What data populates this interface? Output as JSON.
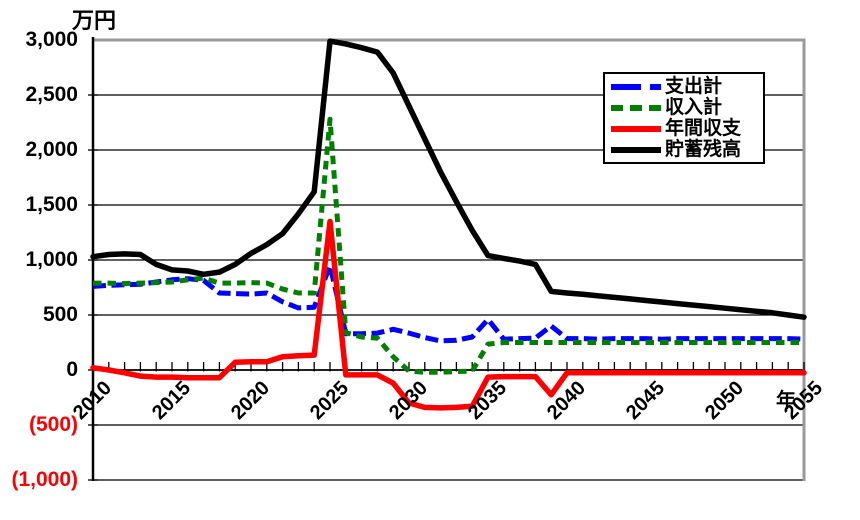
{
  "unit_label": "万円",
  "x_axis_suffix": "年",
  "colors": {
    "expenditure": "#0000ff",
    "income": "#008000",
    "annual_balance": "#ff0000",
    "savings_balance": "#000000",
    "negative_tick": "#ff0000",
    "frame_gray": "#9a9a9a",
    "grid_black": "#000000"
  },
  "chart_data": {
    "type": "line",
    "title": "",
    "ylabel": "万円",
    "xlabel": "年",
    "ylim": [
      -1000,
      3000
    ],
    "grid": true,
    "legend_position": "top-right-inside",
    "x": [
      2010,
      2011,
      2012,
      2013,
      2014,
      2015,
      2016,
      2017,
      2018,
      2019,
      2020,
      2021,
      2022,
      2023,
      2024,
      2025,
      2026,
      2027,
      2028,
      2029,
      2030,
      2031,
      2032,
      2033,
      2034,
      2035,
      2036,
      2037,
      2038,
      2039,
      2040,
      2041,
      2042,
      2043,
      2044,
      2045,
      2046,
      2047,
      2048,
      2049,
      2050,
      2051,
      2052,
      2053,
      2054,
      2055
    ],
    "x_tick_labels": [
      "2010",
      "2015",
      "2020",
      "2025",
      "2030",
      "2035",
      "2040",
      "2045",
      "2050",
      "2055"
    ],
    "y_ticks": [
      {
        "label": "3,000",
        "value": 3000,
        "negative": false
      },
      {
        "label": "2,500",
        "value": 2500,
        "negative": false
      },
      {
        "label": "2,000",
        "value": 2000,
        "negative": false
      },
      {
        "label": "1,500",
        "value": 1500,
        "negative": false
      },
      {
        "label": "1,000",
        "value": 1000,
        "negative": false
      },
      {
        "label": "500",
        "value": 500,
        "negative": false
      },
      {
        "label": "0",
        "value": 0,
        "negative": false
      },
      {
        "label": "(500)",
        "value": -500,
        "negative": true
      },
      {
        "label": "(1,000)",
        "value": -1000,
        "negative": true
      }
    ],
    "series": [
      {
        "key": "expenditure-total",
        "name": "支出計",
        "color": "#0000ff",
        "dash": "13 5.5",
        "legend_dash": "30 9",
        "width": 5,
        "values": [
          760,
          770,
          775,
          780,
          800,
          820,
          830,
          815,
          700,
          695,
          690,
          700,
          620,
          565,
          570,
          950,
          330,
          330,
          335,
          370,
          335,
          295,
          265,
          270,
          300,
          460,
          280,
          285,
          290,
          400,
          285,
          285,
          280,
          285,
          285,
          285,
          280,
          285,
          285,
          285,
          285,
          285,
          285,
          285,
          285,
          280
        ]
      },
      {
        "key": "income-total",
        "name": "収入計",
        "color": "#008000",
        "dash": "8.5 6",
        "legend_dash": "12 7",
        "width": 5,
        "values": [
          790,
          790,
          785,
          790,
          795,
          800,
          820,
          835,
          790,
          790,
          795,
          790,
          735,
          700,
          700,
          2280,
          340,
          300,
          290,
          120,
          -10,
          -20,
          -20,
          -15,
          -10,
          235,
          250,
          250,
          250,
          250,
          250,
          250,
          250,
          250,
          250,
          250,
          250,
          250,
          250,
          250,
          250,
          250,
          250,
          250,
          250,
          250
        ]
      },
      {
        "key": "annual-balance",
        "name": "年間収支",
        "color": "#ff0000",
        "dash": null,
        "legend_dash": null,
        "width": 5.5,
        "values": [
          20,
          0,
          -25,
          -55,
          -65,
          -65,
          -70,
          -70,
          -70,
          70,
          75,
          75,
          120,
          130,
          135,
          1350,
          -45,
          -45,
          -45,
          -120,
          -300,
          -340,
          -345,
          -340,
          -330,
          -65,
          -60,
          -60,
          -60,
          -225,
          -25,
          -25,
          -25,
          -25,
          -25,
          -25,
          -25,
          -25,
          -25,
          -25,
          -25,
          -25,
          -25,
          -25,
          -25,
          -25
        ]
      },
      {
        "key": "savings-balance",
        "name": "貯蓄残高",
        "color": "#000000",
        "dash": null,
        "legend_dash": null,
        "width": 5.5,
        "values": [
          1030,
          1050,
          1055,
          1050,
          960,
          910,
          900,
          870,
          890,
          960,
          1060,
          1140,
          1240,
          1420,
          1620,
          2990,
          2965,
          2930,
          2890,
          2700,
          2400,
          2100,
          1800,
          1530,
          1270,
          1040,
          1015,
          990,
          960,
          715,
          700,
          688,
          674,
          660,
          646,
          632,
          618,
          604,
          590,
          576,
          562,
          548,
          534,
          520,
          500,
          480
        ]
      }
    ]
  }
}
